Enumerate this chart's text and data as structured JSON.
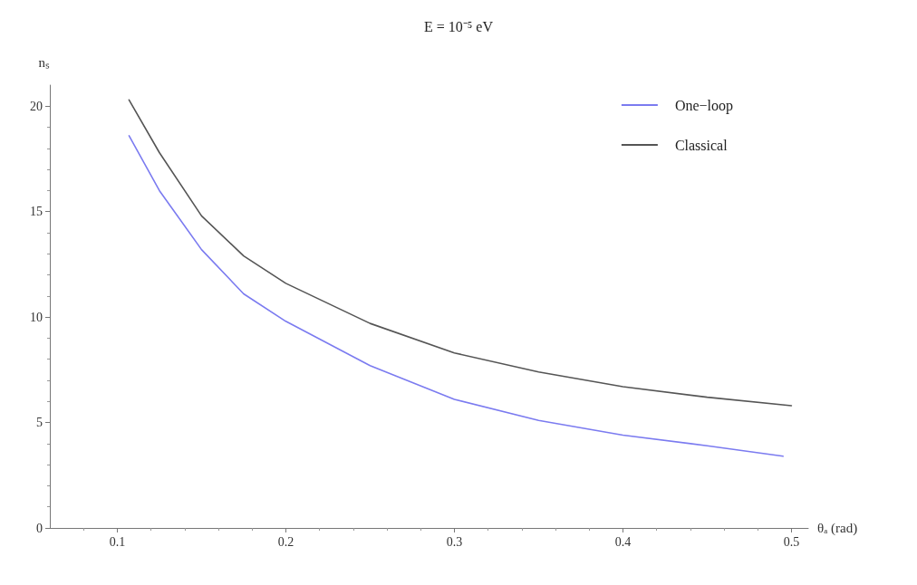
{
  "chart_data": {
    "type": "line",
    "title": "E = 10⁻⁵ eV",
    "xlabel": "θₐ (rad)",
    "ylabel": "nₛ",
    "xlim": [
      0.06,
      0.51
    ],
    "xticks": [
      0.1,
      0.2,
      0.3,
      0.4,
      0.5
    ],
    "ylim": [
      0,
      21
    ],
    "yticks": [
      0,
      5,
      10,
      15,
      20
    ],
    "grid": false,
    "legend": "top right",
    "line_style": "solid",
    "marker": "none",
    "series": [
      {
        "name": "One−loop",
        "color": "#7b7bf0",
        "x": [
          0.107,
          0.125,
          0.15,
          0.175,
          0.2,
          0.25,
          0.3,
          0.35,
          0.4,
          0.45,
          0.495
        ],
        "values": [
          18.6,
          16.0,
          13.2,
          11.1,
          9.8,
          7.7,
          6.1,
          5.1,
          4.4,
          3.9,
          3.4
        ]
      },
      {
        "name": "Classical",
        "color": "#555555",
        "x": [
          0.107,
          0.125,
          0.15,
          0.175,
          0.2,
          0.25,
          0.3,
          0.35,
          0.4,
          0.45,
          0.5
        ],
        "values": [
          20.3,
          17.8,
          14.8,
          12.9,
          11.6,
          9.7,
          8.3,
          7.4,
          6.7,
          6.2,
          5.8
        ]
      }
    ]
  }
}
